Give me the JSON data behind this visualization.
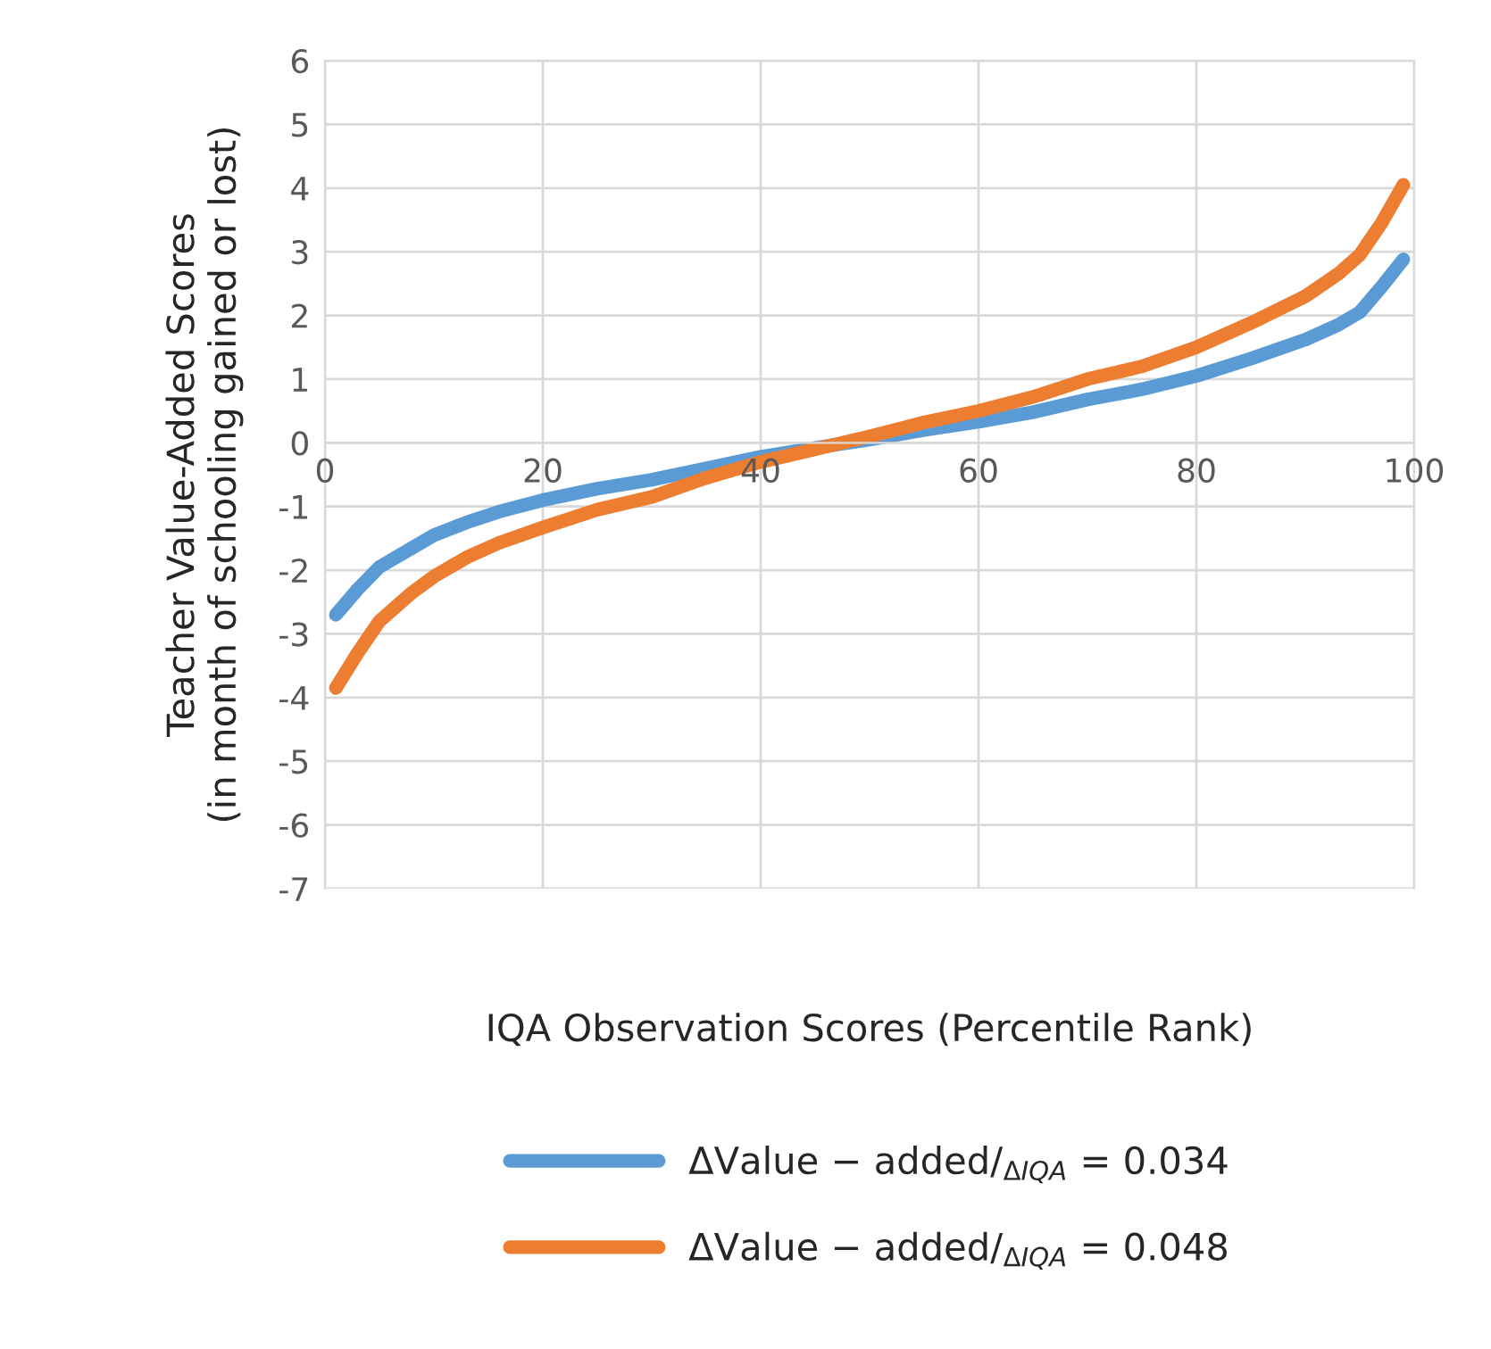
{
  "chart_data": {
    "type": "line",
    "xlabel": "IQA Observation Scores (Percentile Rank)",
    "ylabel": "Teacher Value-Added Scores\n(in month of schooling gained or lost)",
    "x": [
      1,
      3,
      5,
      8,
      10,
      13,
      16,
      20,
      25,
      30,
      35,
      40,
      45,
      50,
      55,
      60,
      65,
      70,
      75,
      80,
      85,
      90,
      93,
      95,
      97,
      99
    ],
    "series": [
      {
        "name": "ΔValue − added/$_{ΔIQA}$ = 0.034",
        "color": "#5b9bd5",
        "values": [
          -2.7,
          -2.3,
          -1.95,
          -1.65,
          -1.45,
          -1.25,
          -1.08,
          -0.9,
          -0.72,
          -0.58,
          -0.4,
          -0.22,
          -0.08,
          0.05,
          0.2,
          0.33,
          0.48,
          0.68,
          0.84,
          1.05,
          1.32,
          1.62,
          1.85,
          2.05,
          2.45,
          2.88
        ]
      },
      {
        "name": "ΔValue − added/$_{ΔIQA}$ = 0.048",
        "color": "#ed7d31",
        "values": [
          -3.85,
          -3.3,
          -2.8,
          -2.35,
          -2.1,
          -1.8,
          -1.57,
          -1.33,
          -1.05,
          -0.85,
          -0.55,
          -0.3,
          -0.1,
          0.1,
          0.32,
          0.5,
          0.72,
          1.0,
          1.2,
          1.5,
          1.88,
          2.3,
          2.65,
          2.95,
          3.45,
          4.05
        ]
      }
    ],
    "xlim": [
      0,
      100
    ],
    "xticks": [
      0,
      20,
      40,
      60,
      80,
      100
    ],
    "ylim": [
      -7,
      6
    ],
    "yticks": [
      -7,
      -6,
      -5,
      -4,
      -3,
      -2,
      -1,
      0,
      1,
      2,
      3,
      4,
      5,
      6
    ],
    "grid": true,
    "legend": "bottom",
    "marker": "none",
    "line_style": "solid"
  }
}
